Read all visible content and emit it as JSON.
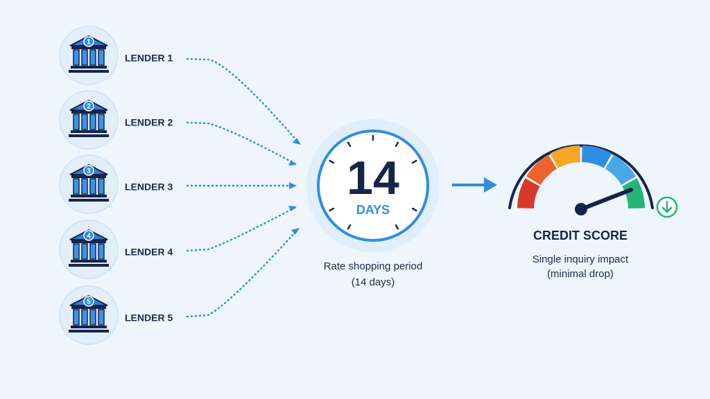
{
  "lenders": [
    {
      "badge": "1",
      "label": "LENDER 1"
    },
    {
      "badge": "2",
      "label": "LENDER 2"
    },
    {
      "badge": "3",
      "label": "LENDER 3"
    },
    {
      "badge": "4",
      "label": "LENDER 4"
    },
    {
      "badge": "5",
      "label": "LENDER 5"
    }
  ],
  "clock": {
    "number": "14",
    "unit": "DAYS",
    "caption": [
      "Rate shopping period",
      "(14 days)"
    ]
  },
  "gauge": {
    "title": "CREDIT SCORE",
    "caption": [
      "Single inquiry impact",
      "(minimal drop)"
    ]
  }
}
